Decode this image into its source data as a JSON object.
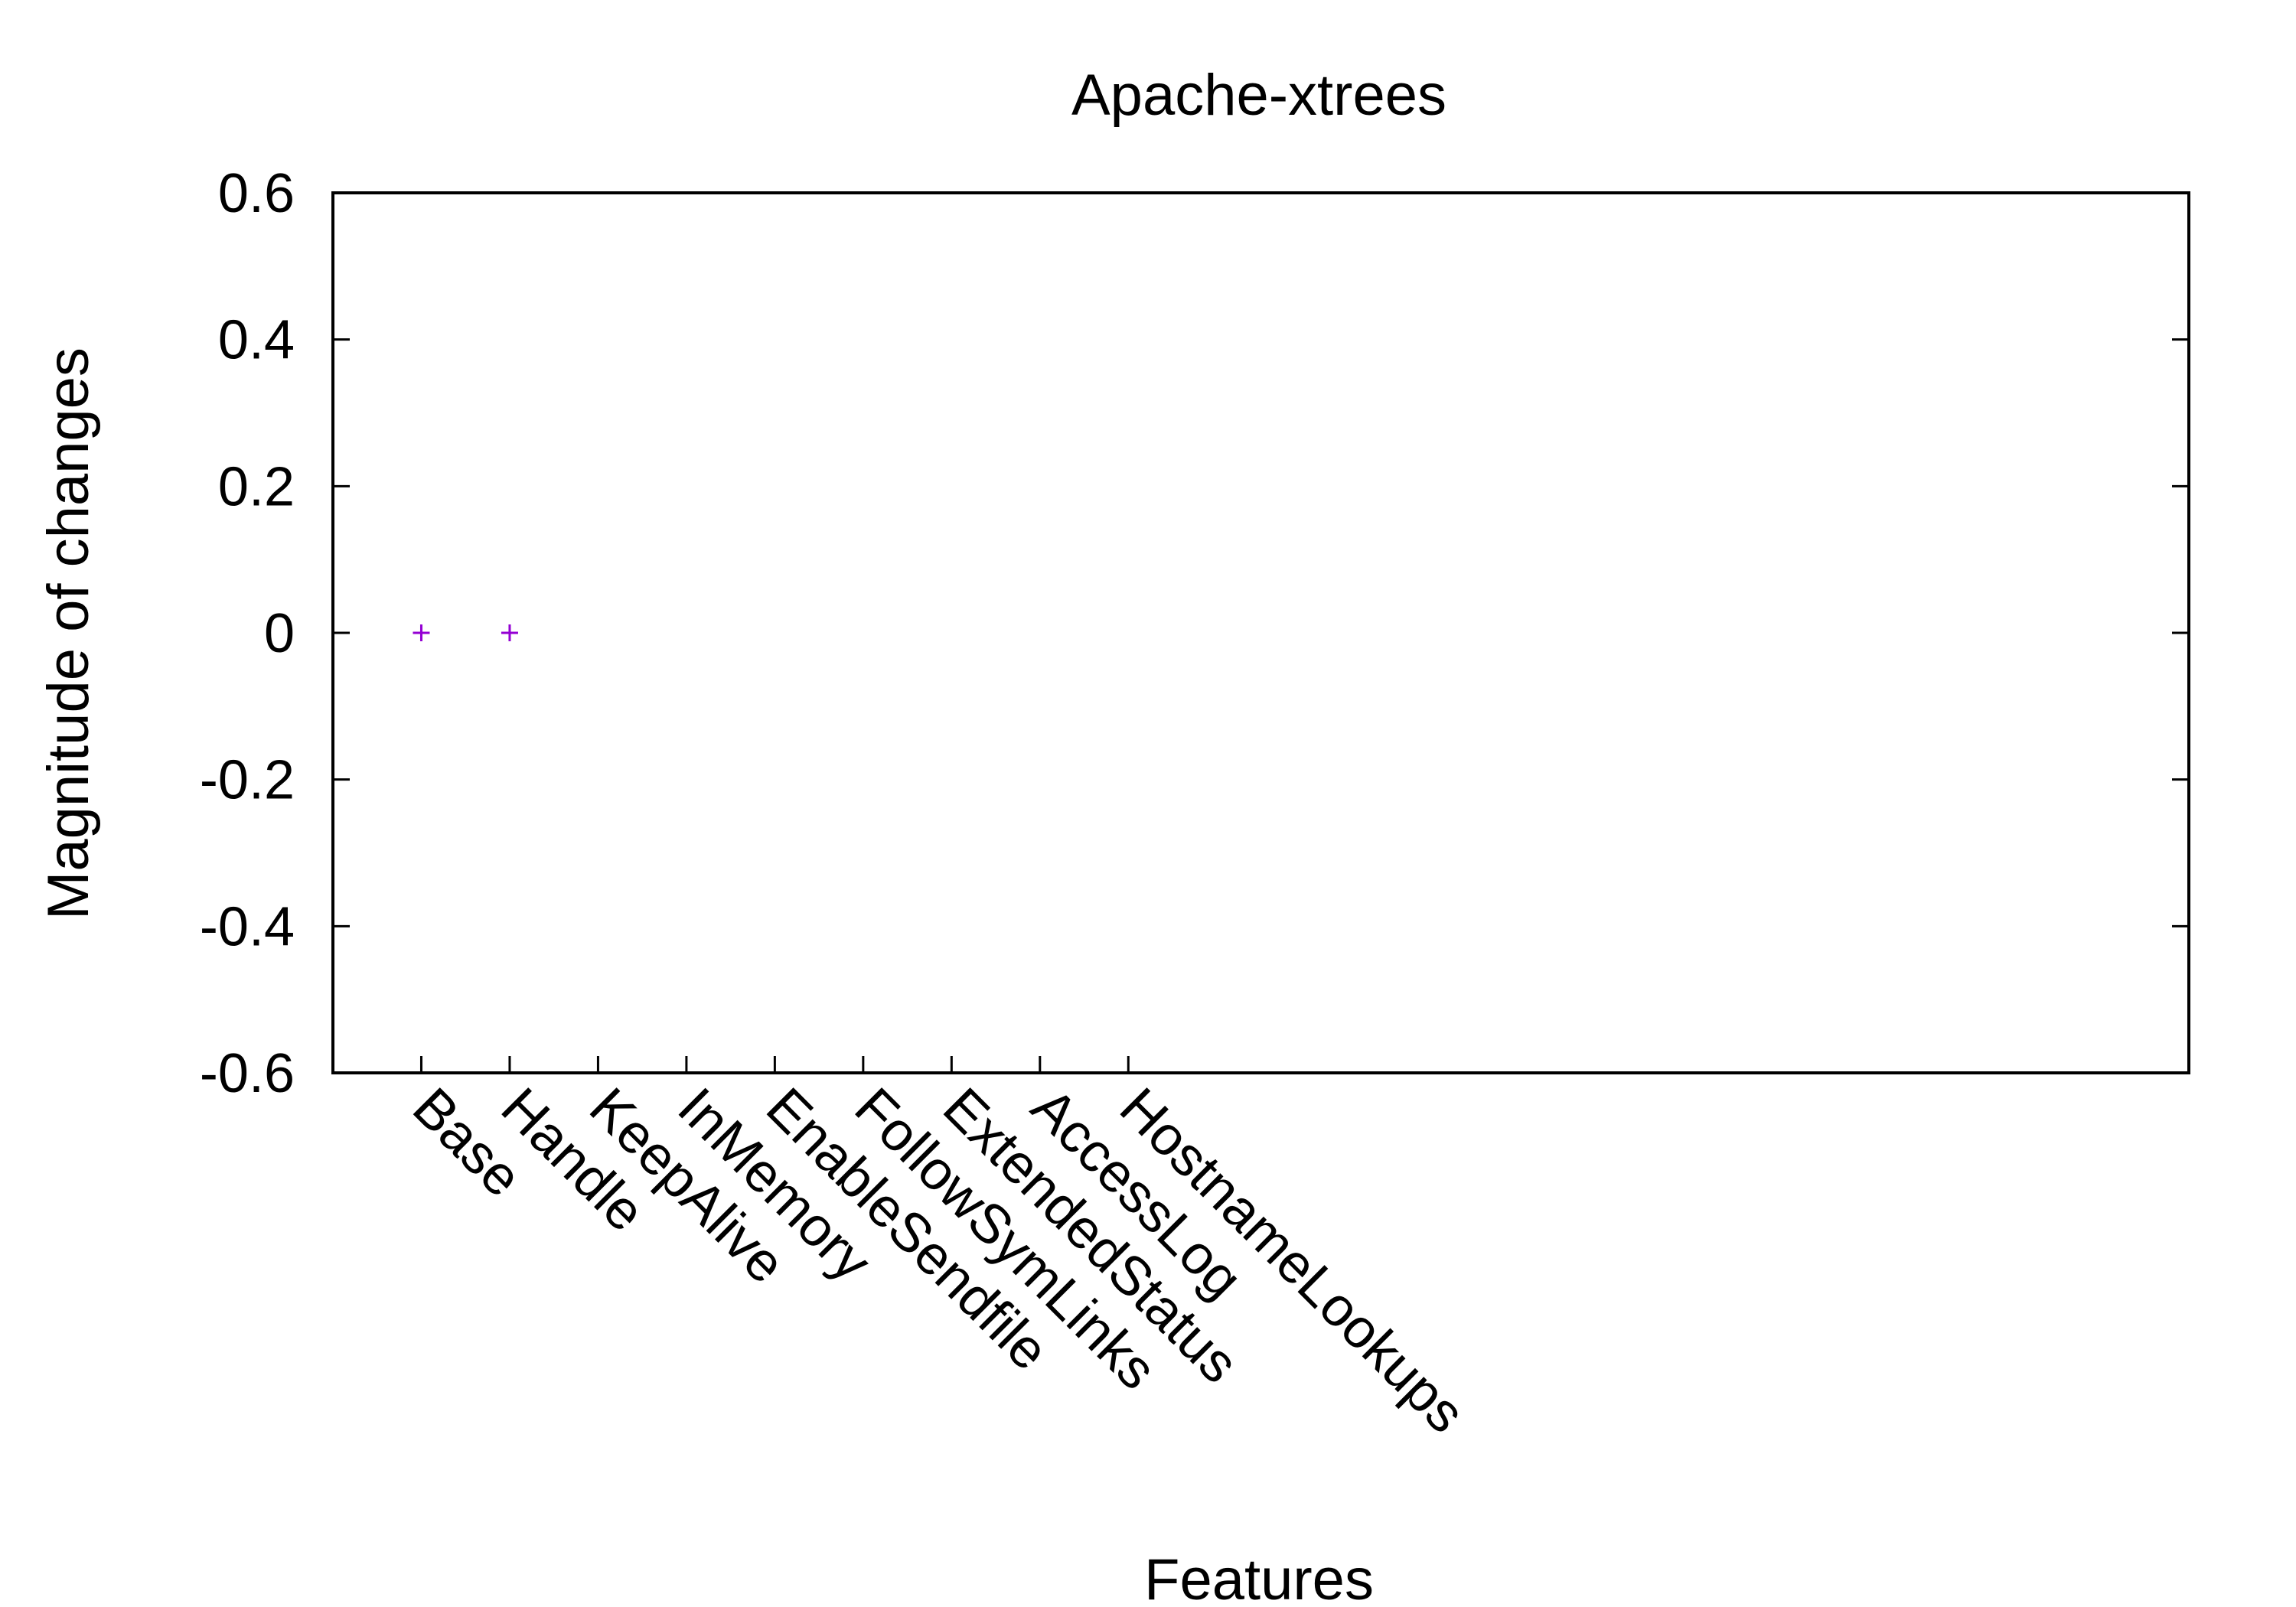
{
  "chart_data": {
    "type": "scatter",
    "title": "Apache-xtrees",
    "xlabel": "Features",
    "ylabel": "Magnitude of changes",
    "categories": [
      "Base",
      "Handle",
      "KeepAlive",
      "InMemory",
      "EnableSendfile",
      "FollowSymLinks",
      "ExtendedStatus",
      "AccessLog",
      "HostnameLookups"
    ],
    "x_slots": 20,
    "ylim": [
      -0.6,
      0.6
    ],
    "yticks": [
      -0.6,
      -0.4,
      -0.2,
      0,
      0.2,
      0.4,
      0.6
    ],
    "ytick_labels": [
      "-0.6",
      "-0.4",
      "-0.2",
      "0",
      "0.2",
      "0.4",
      "0.6"
    ],
    "grid": false,
    "marker": "+",
    "series": [
      {
        "points": [
          {
            "x": "Base",
            "y": 0
          },
          {
            "x": "Handle",
            "y": 0
          }
        ],
        "color": "#9400d3"
      }
    ]
  }
}
